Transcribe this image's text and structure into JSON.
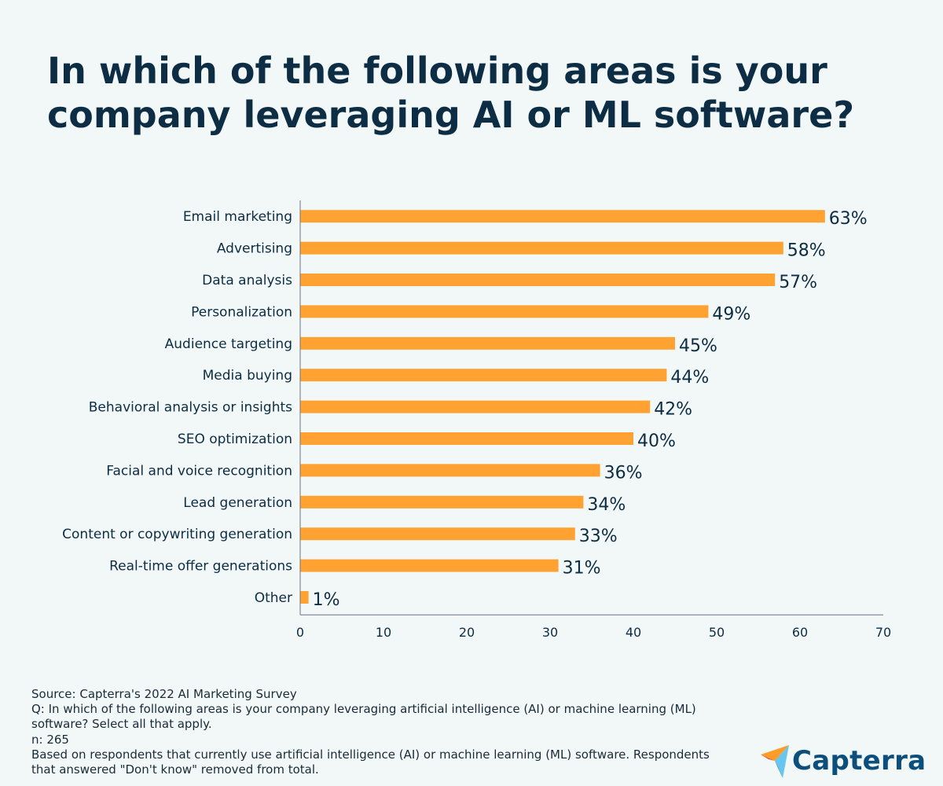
{
  "chart_data": {
    "type": "bar",
    "orientation": "horizontal",
    "title": "In which of the following areas is your company leveraging AI or ML software?",
    "categories": [
      "Email marketing",
      "Advertising",
      "Data analysis",
      "Personalization",
      "Audience targeting",
      "Media buying",
      "Behavioral analysis or insights",
      "SEO optimization",
      "Facial and voice recognition",
      "Lead generation",
      "Content or copywriting generation",
      "Real-time offer generations",
      "Other"
    ],
    "values": [
      63,
      58,
      57,
      49,
      45,
      44,
      42,
      40,
      36,
      34,
      33,
      31,
      1
    ],
    "value_labels": [
      "63%",
      "58%",
      "57%",
      "49%",
      "45%",
      "44%",
      "42%",
      "40%",
      "36%",
      "34%",
      "33%",
      "31%",
      "1%"
    ],
    "xlim": [
      0,
      70
    ],
    "x_ticks": [
      0,
      10,
      20,
      30,
      40,
      50,
      60,
      70
    ],
    "xlabel": "",
    "ylabel": "",
    "grid": false,
    "bar_color": "#ffa231",
    "axis_color": "#6b7680"
  },
  "footnotes": {
    "source": "Source: Capterra's 2022 AI Marketing Survey",
    "question": "Q: In which of the following areas is your company leveraging artificial intelligence (AI) or machine learning (ML) software? Select all that apply.",
    "n": "n: 265",
    "base": "Based on respondents that currently use artificial intelligence (AI) or machine learning (ML) software. Respondents that answered \"Don't know\" removed from total."
  },
  "logo": {
    "text": "Capterra",
    "icon": "capterra-arrow-icon",
    "colors": [
      "#ff9d28",
      "#68c5ed",
      "#044d80",
      "#e54747"
    ]
  },
  "background_color": "#f2f7f8"
}
